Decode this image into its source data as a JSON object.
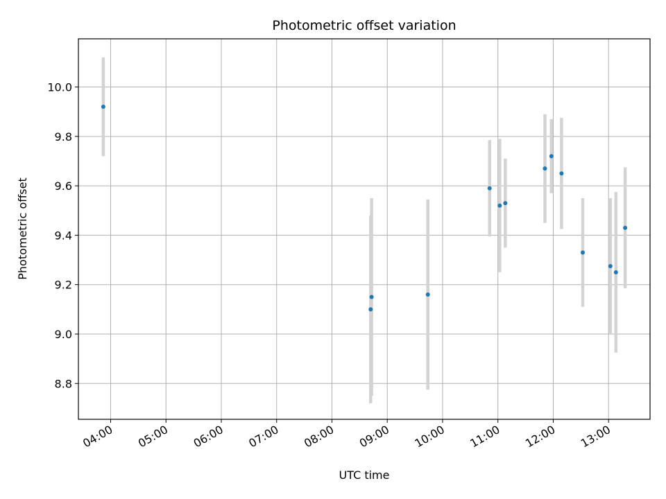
{
  "chart_data": {
    "type": "scatter",
    "title": "Photometric offset variation",
    "xlabel": "UTC time",
    "ylabel": "Photometric offset",
    "x_ticks": [
      "04:00",
      "05:00",
      "06:00",
      "07:00",
      "08:00",
      "09:00",
      "10:00",
      "11:00",
      "12:00",
      "13:00"
    ],
    "y_ticks": [
      "8.8",
      "9.0",
      "9.2",
      "9.4",
      "9.6",
      "9.8",
      "10.0"
    ],
    "xlim": [
      "03:25",
      "13:45"
    ],
    "ylim": [
      8.655,
      10.195
    ],
    "grid": true,
    "series": [
      {
        "marker_color": "#1f77b4",
        "errorbar_color": "#d3d3d3",
        "points": [
          {
            "x": "03:52",
            "y": 9.92,
            "yerr": 0.2
          },
          {
            "x": "08:42",
            "y": 9.1,
            "yerr": 0.38
          },
          {
            "x": "08:43",
            "y": 9.15,
            "yerr": 0.4
          },
          {
            "x": "09:44",
            "y": 9.16,
            "yerr": 0.385
          },
          {
            "x": "10:51",
            "y": 9.59,
            "yerr": 0.195
          },
          {
            "x": "11:02",
            "y": 9.52,
            "yerr": 0.27
          },
          {
            "x": "11:08",
            "y": 9.53,
            "yerr": 0.18
          },
          {
            "x": "11:51",
            "y": 9.67,
            "yerr": 0.22
          },
          {
            "x": "11:58",
            "y": 9.72,
            "yerr": 0.15
          },
          {
            "x": "12:09",
            "y": 9.65,
            "yerr": 0.225
          },
          {
            "x": "12:32",
            "y": 9.33,
            "yerr": 0.22
          },
          {
            "x": "13:02",
            "y": 9.275,
            "yerr": 0.275
          },
          {
            "x": "13:08",
            "y": 9.25,
            "yerr": 0.325
          },
          {
            "x": "13:18",
            "y": 9.43,
            "yerr": 0.245
          }
        ]
      }
    ]
  }
}
